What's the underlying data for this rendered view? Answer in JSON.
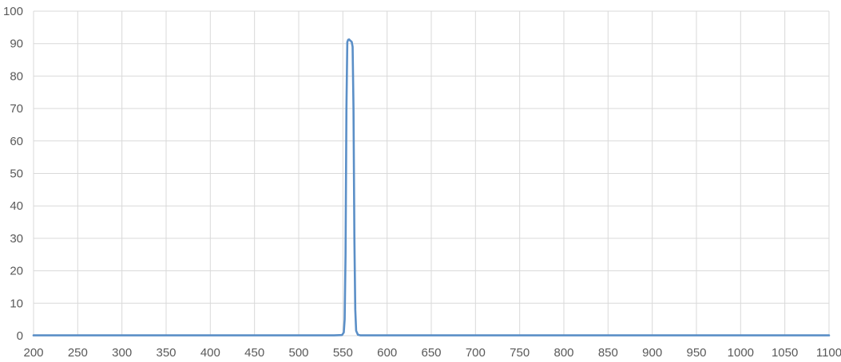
{
  "chart_data": {
    "type": "line",
    "title": "",
    "xlabel": "",
    "ylabel": "",
    "xlim": [
      200,
      1100
    ],
    "ylim": [
      0,
      100
    ],
    "x_ticks": [
      "200",
      "250",
      "300",
      "350",
      "400",
      "450",
      "500",
      "550",
      "600",
      "650",
      "700",
      "750",
      "800",
      "850",
      "900",
      "950",
      "1000",
      "1050",
      "1100"
    ],
    "y_ticks": [
      "0",
      "10",
      "20",
      "30",
      "40",
      "50",
      "60",
      "70",
      "80",
      "90",
      "100"
    ],
    "grid": true,
    "legend": "none",
    "colors": {
      "series": "#5b8fc7",
      "grid": "#d9d9d9",
      "tick_text": "#595959"
    },
    "series": [
      {
        "x": [
          200,
          400,
          540,
          549,
          551,
          552,
          553,
          554,
          555,
          556,
          557,
          558,
          559,
          560,
          561,
          562,
          563,
          564,
          565,
          567,
          570,
          600,
          800,
          1100
        ],
        "y": [
          0.1,
          0.1,
          0.1,
          0.2,
          1,
          5,
          25,
          70,
          90.5,
          91.2,
          91.3,
          91,
          90.8,
          90.5,
          89,
          70,
          30,
          8,
          1.5,
          0.3,
          0.1,
          0.1,
          0.1,
          0.1
        ]
      }
    ]
  }
}
